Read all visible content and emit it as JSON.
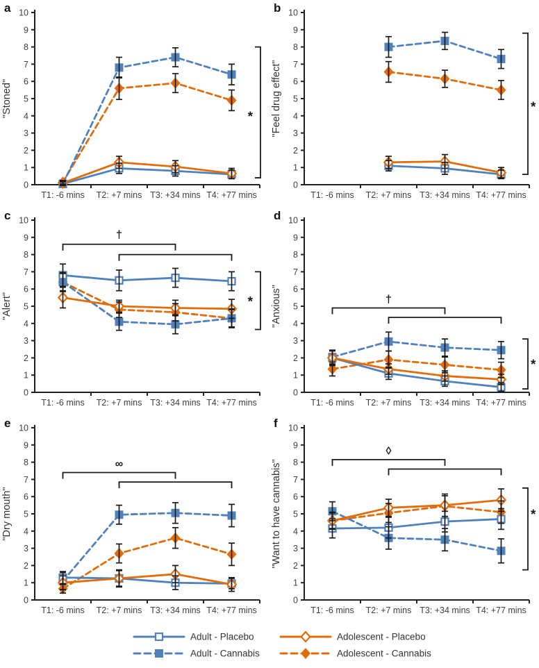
{
  "figure": {
    "colors": {
      "blue": "#4f81bd",
      "orange": "#e26c0a",
      "axis": "#212121",
      "error_bar": "#1a1a1a",
      "text": "#3f3f3f",
      "annotation": "#1a1a1a",
      "background": "#ffffff"
    },
    "series_defs": [
      {
        "key": "adult_placebo",
        "label": "Adult - Placebo",
        "color": "blue",
        "dashed": false,
        "marker": "square-open"
      },
      {
        "key": "adult_cannabis",
        "label": "Adult - Cannabis",
        "color": "blue",
        "dashed": true,
        "marker": "square-filled"
      },
      {
        "key": "adolescent_placebo",
        "label": "Adolescent - Placebo",
        "color": "orange",
        "dashed": false,
        "marker": "diamond-open"
      },
      {
        "key": "adolescent_cannabis",
        "label": "Adolescent - Cannabis",
        "color": "orange",
        "dashed": true,
        "marker": "diamond-filled"
      }
    ],
    "legend": {
      "columns": [
        {
          "entries": [
            "adult_placebo",
            "adult_cannabis"
          ]
        },
        {
          "entries": [
            "adolescent_placebo",
            "adolescent_cannabis"
          ]
        }
      ]
    }
  },
  "chart_data": {
    "type": "line",
    "categories": [
      "T1: -6 mins",
      "T2: +7 mins",
      "T3: +34 mins",
      "T4: +77 mins"
    ],
    "ylim": [
      0,
      10
    ],
    "y_ticks": [
      0,
      1,
      2,
      3,
      4,
      5,
      6,
      7,
      8,
      9,
      10
    ],
    "grid": false,
    "legend_position": "bottom",
    "panels": [
      {
        "letter": "a",
        "ylabel": "\"Stoned\"",
        "series": [
          {
            "name": "Adult - Placebo",
            "key": "adult_placebo",
            "values": [
              0.05,
              0.95,
              0.8,
              0.6
            ],
            "err": [
              0.1,
              0.3,
              0.3,
              0.25
            ]
          },
          {
            "name": "Adult - Cannabis",
            "key": "adult_cannabis",
            "values": [
              0.05,
              6.8,
              7.4,
              6.4
            ],
            "err": [
              0.1,
              0.6,
              0.55,
              0.6
            ]
          },
          {
            "name": "Adolescent - Placebo",
            "key": "adolescent_placebo",
            "values": [
              0.1,
              1.3,
              1.05,
              0.65
            ],
            "err": [
              0.1,
              0.35,
              0.35,
              0.3
            ]
          },
          {
            "name": "Adolescent - Cannabis",
            "key": "adolescent_cannabis",
            "values": [
              0.15,
              5.6,
              5.9,
              4.9
            ],
            "err": [
              0.1,
              0.65,
              0.55,
              0.6
            ]
          }
        ],
        "right_bracket": {
          "symbol": "*",
          "top": 8.0,
          "bottom": 0.4,
          "symbol_y": 4.0,
          "star_side": "left"
        },
        "top_bracket": null
      },
      {
        "letter": "b",
        "ylabel": "\"Feel drug effect\"",
        "series": [
          {
            "name": "Adult - Placebo",
            "key": "adult_placebo",
            "values": [
              null,
              1.1,
              0.95,
              0.6
            ],
            "err": [
              null,
              0.3,
              0.35,
              0.25
            ]
          },
          {
            "name": "Adult - Cannabis",
            "key": "adult_cannabis",
            "values": [
              null,
              8.0,
              8.35,
              7.3
            ],
            "err": [
              null,
              0.6,
              0.5,
              0.55
            ]
          },
          {
            "name": "Adolescent - Placebo",
            "key": "adolescent_placebo",
            "values": [
              null,
              1.3,
              1.35,
              0.7
            ],
            "err": [
              null,
              0.35,
              0.4,
              0.3
            ]
          },
          {
            "name": "Adolescent - Cannabis",
            "key": "adolescent_cannabis",
            "values": [
              null,
              6.55,
              6.15,
              5.5
            ],
            "err": [
              null,
              0.6,
              0.5,
              0.55
            ]
          }
        ],
        "right_bracket": {
          "symbol": "*",
          "top": 8.8,
          "bottom": 0.6,
          "symbol_y": 4.55,
          "star_side": "right"
        },
        "top_bracket": null
      },
      {
        "letter": "c",
        "ylabel": "\"Alert\"",
        "series": [
          {
            "name": "Adult - Placebo",
            "key": "adult_placebo",
            "values": [
              6.8,
              6.5,
              6.65,
              6.45
            ],
            "err": [
              0.65,
              0.6,
              0.55,
              0.55
            ]
          },
          {
            "name": "Adult - Cannabis",
            "key": "adult_cannabis",
            "values": [
              6.4,
              4.1,
              3.95,
              4.3
            ],
            "err": [
              0.55,
              0.5,
              0.55,
              0.55
            ]
          },
          {
            "name": "Adolescent - Placebo",
            "key": "adolescent_placebo",
            "values": [
              5.5,
              5.0,
              4.9,
              4.85
            ],
            "err": [
              0.6,
              0.35,
              0.45,
              0.55
            ]
          },
          {
            "name": "Adolescent - Cannabis",
            "key": "adolescent_cannabis",
            "values": [
              6.4,
              4.8,
              4.65,
              4.3
            ],
            "err": [
              0.5,
              0.45,
              0.5,
              0.5
            ]
          }
        ],
        "right_bracket": {
          "symbol": "*",
          "top": 7.0,
          "bottom": 3.65,
          "symbol_y": 5.3,
          "star_side": "left"
        },
        "top_bracket": {
          "symbol": "†",
          "upper_y": 8.6,
          "lower_y": 8.0,
          "symbol_y": 9.15
        }
      },
      {
        "letter": "d",
        "ylabel": "\"Anxious\"",
        "series": [
          {
            "name": "Adult - Placebo",
            "key": "adult_placebo",
            "values": [
              2.0,
              1.1,
              0.65,
              0.3
            ],
            "err": [
              0.4,
              0.35,
              0.3,
              0.25
            ]
          },
          {
            "name": "Adult - Cannabis",
            "key": "adult_cannabis",
            "values": [
              2.05,
              2.95,
              2.6,
              2.45
            ],
            "err": [
              0.4,
              0.55,
              0.5,
              0.5
            ]
          },
          {
            "name": "Adolescent - Placebo",
            "key": "adolescent_placebo",
            "values": [
              2.0,
              1.35,
              0.95,
              0.75
            ],
            "err": [
              0.45,
              0.3,
              0.3,
              0.3
            ]
          },
          {
            "name": "Adolescent - Cannabis",
            "key": "adolescent_cannabis",
            "values": [
              1.35,
              1.9,
              1.6,
              1.3
            ],
            "err": [
              0.4,
              0.5,
              0.45,
              0.45
            ]
          }
        ],
        "right_bracket": {
          "symbol": "*",
          "top": 3.1,
          "bottom": 0.2,
          "symbol_y": 1.65,
          "star_side": "right"
        },
        "top_bracket": {
          "symbol": "†",
          "upper_y": 4.9,
          "lower_y": 4.35,
          "symbol_y": 5.4
        }
      },
      {
        "letter": "e",
        "ylabel": "\"Dry mouth\"",
        "series": [
          {
            "name": "Adult - Placebo",
            "key": "adult_placebo",
            "values": [
              1.3,
              1.25,
              1.0,
              0.95
            ],
            "err": [
              0.35,
              0.5,
              0.4,
              0.3
            ]
          },
          {
            "name": "Adult - Cannabis",
            "key": "adult_cannabis",
            "values": [
              1.1,
              4.95,
              5.05,
              4.9
            ],
            "err": [
              0.5,
              0.55,
              0.6,
              0.65
            ]
          },
          {
            "name": "Adolescent - Placebo",
            "key": "adolescent_placebo",
            "values": [
              1.0,
              1.25,
              1.5,
              0.9
            ],
            "err": [
              0.4,
              0.45,
              0.5,
              0.4
            ]
          },
          {
            "name": "Adolescent - Cannabis",
            "key": "adolescent_cannabis",
            "values": [
              0.65,
              2.7,
              3.6,
              2.65
            ],
            "err": [
              0.25,
              0.55,
              0.6,
              0.65
            ]
          }
        ],
        "right_bracket": null,
        "top_bracket": {
          "symbol": "∞",
          "upper_y": 7.4,
          "lower_y": 6.85,
          "symbol_y": 7.9
        }
      },
      {
        "letter": "f",
        "ylabel": "\"Want to have cannabis\"",
        "series": [
          {
            "name": "Adult - Placebo",
            "key": "adult_placebo",
            "values": [
              4.15,
              4.2,
              4.55,
              4.7
            ],
            "err": [
              0.55,
              0.6,
              0.6,
              0.6
            ]
          },
          {
            "name": "Adult - Cannabis",
            "key": "adult_cannabis",
            "values": [
              5.15,
              3.6,
              3.5,
              2.85
            ],
            "err": [
              0.55,
              0.65,
              0.65,
              0.7
            ]
          },
          {
            "name": "Adolescent - Placebo",
            "key": "adolescent_placebo",
            "values": [
              4.6,
              5.35,
              5.5,
              5.8
            ],
            "err": [
              0.5,
              0.5,
              0.65,
              0.65
            ]
          },
          {
            "name": "Adolescent - Cannabis",
            "key": "adolescent_cannabis",
            "values": [
              4.6,
              5.05,
              5.45,
              5.1
            ],
            "err": [
              0.45,
              0.55,
              0.6,
              0.65
            ]
          }
        ],
        "right_bracket": {
          "symbol": "*",
          "top": 6.5,
          "bottom": 1.75,
          "symbol_y": 5.0,
          "star_side": "right"
        },
        "top_bracket": {
          "symbol": "◊",
          "upper_y": 8.15,
          "lower_y": 7.6,
          "symbol_y": 8.65
        }
      }
    ]
  }
}
